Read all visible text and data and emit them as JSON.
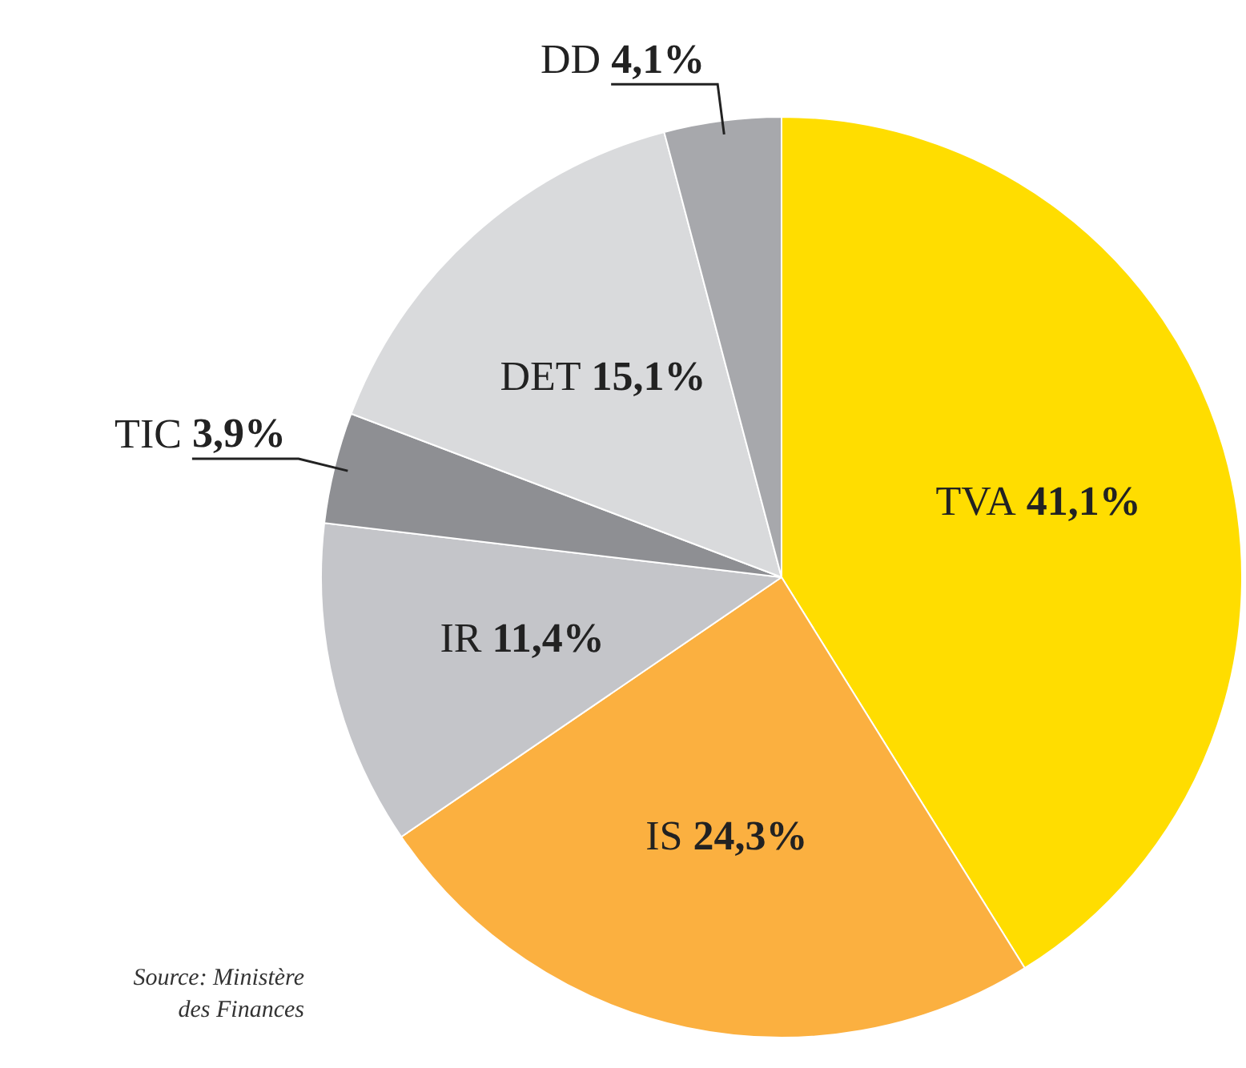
{
  "chart_data": {
    "type": "pie",
    "categories": [
      "TVA",
      "IS",
      "IR",
      "TIC",
      "DET",
      "DD"
    ],
    "values": [
      41.1,
      24.3,
      11.4,
      3.9,
      15.1,
      4.1
    ],
    "value_labels": [
      "41,1%",
      "24,3%",
      "11,4%",
      "3,9%",
      "15,1%",
      "4,1%"
    ],
    "colors": [
      "#ffdd00",
      "#fbb040",
      "#c4c5c9",
      "#8e8f93",
      "#d9dadc",
      "#a7a8ac"
    ],
    "legend": false,
    "annotations": [
      "Source: Ministère des Finances"
    ]
  }
}
